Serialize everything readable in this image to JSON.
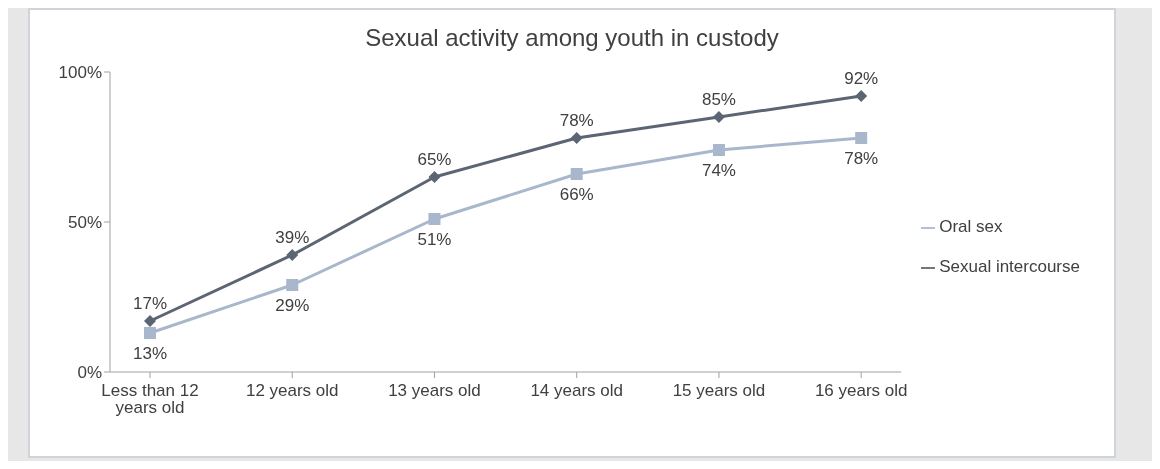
{
  "chart_data": {
    "type": "line",
    "title": "Sexual activity among youth in custody",
    "categories": [
      "Less than 12 years old",
      "12 years old",
      "13 years old",
      "14 years old",
      "15 years old",
      "16 years old"
    ],
    "series": [
      {
        "name": "Sexual intercourse",
        "color": "#5c6573",
        "marker": "diamond",
        "values": [
          17,
          39,
          65,
          78,
          85,
          92
        ],
        "value_labels": [
          "17%",
          "39%",
          "65%",
          "78%",
          "85%",
          "92%"
        ]
      },
      {
        "name": "Oral sex",
        "color": "#a8b7cb",
        "marker": "square",
        "values": [
          13,
          29,
          51,
          66,
          74,
          78
        ],
        "value_labels": [
          "13%",
          "29%",
          "51%",
          "66%",
          "74%",
          "78%"
        ]
      }
    ],
    "ylim": [
      0,
      100
    ],
    "yticks": [
      {
        "value": 0,
        "label": "0%"
      },
      {
        "value": 50,
        "label": "50%"
      },
      {
        "value": 100,
        "label": "100%"
      }
    ],
    "grid": false,
    "legend": "right",
    "line_style": "solid"
  }
}
